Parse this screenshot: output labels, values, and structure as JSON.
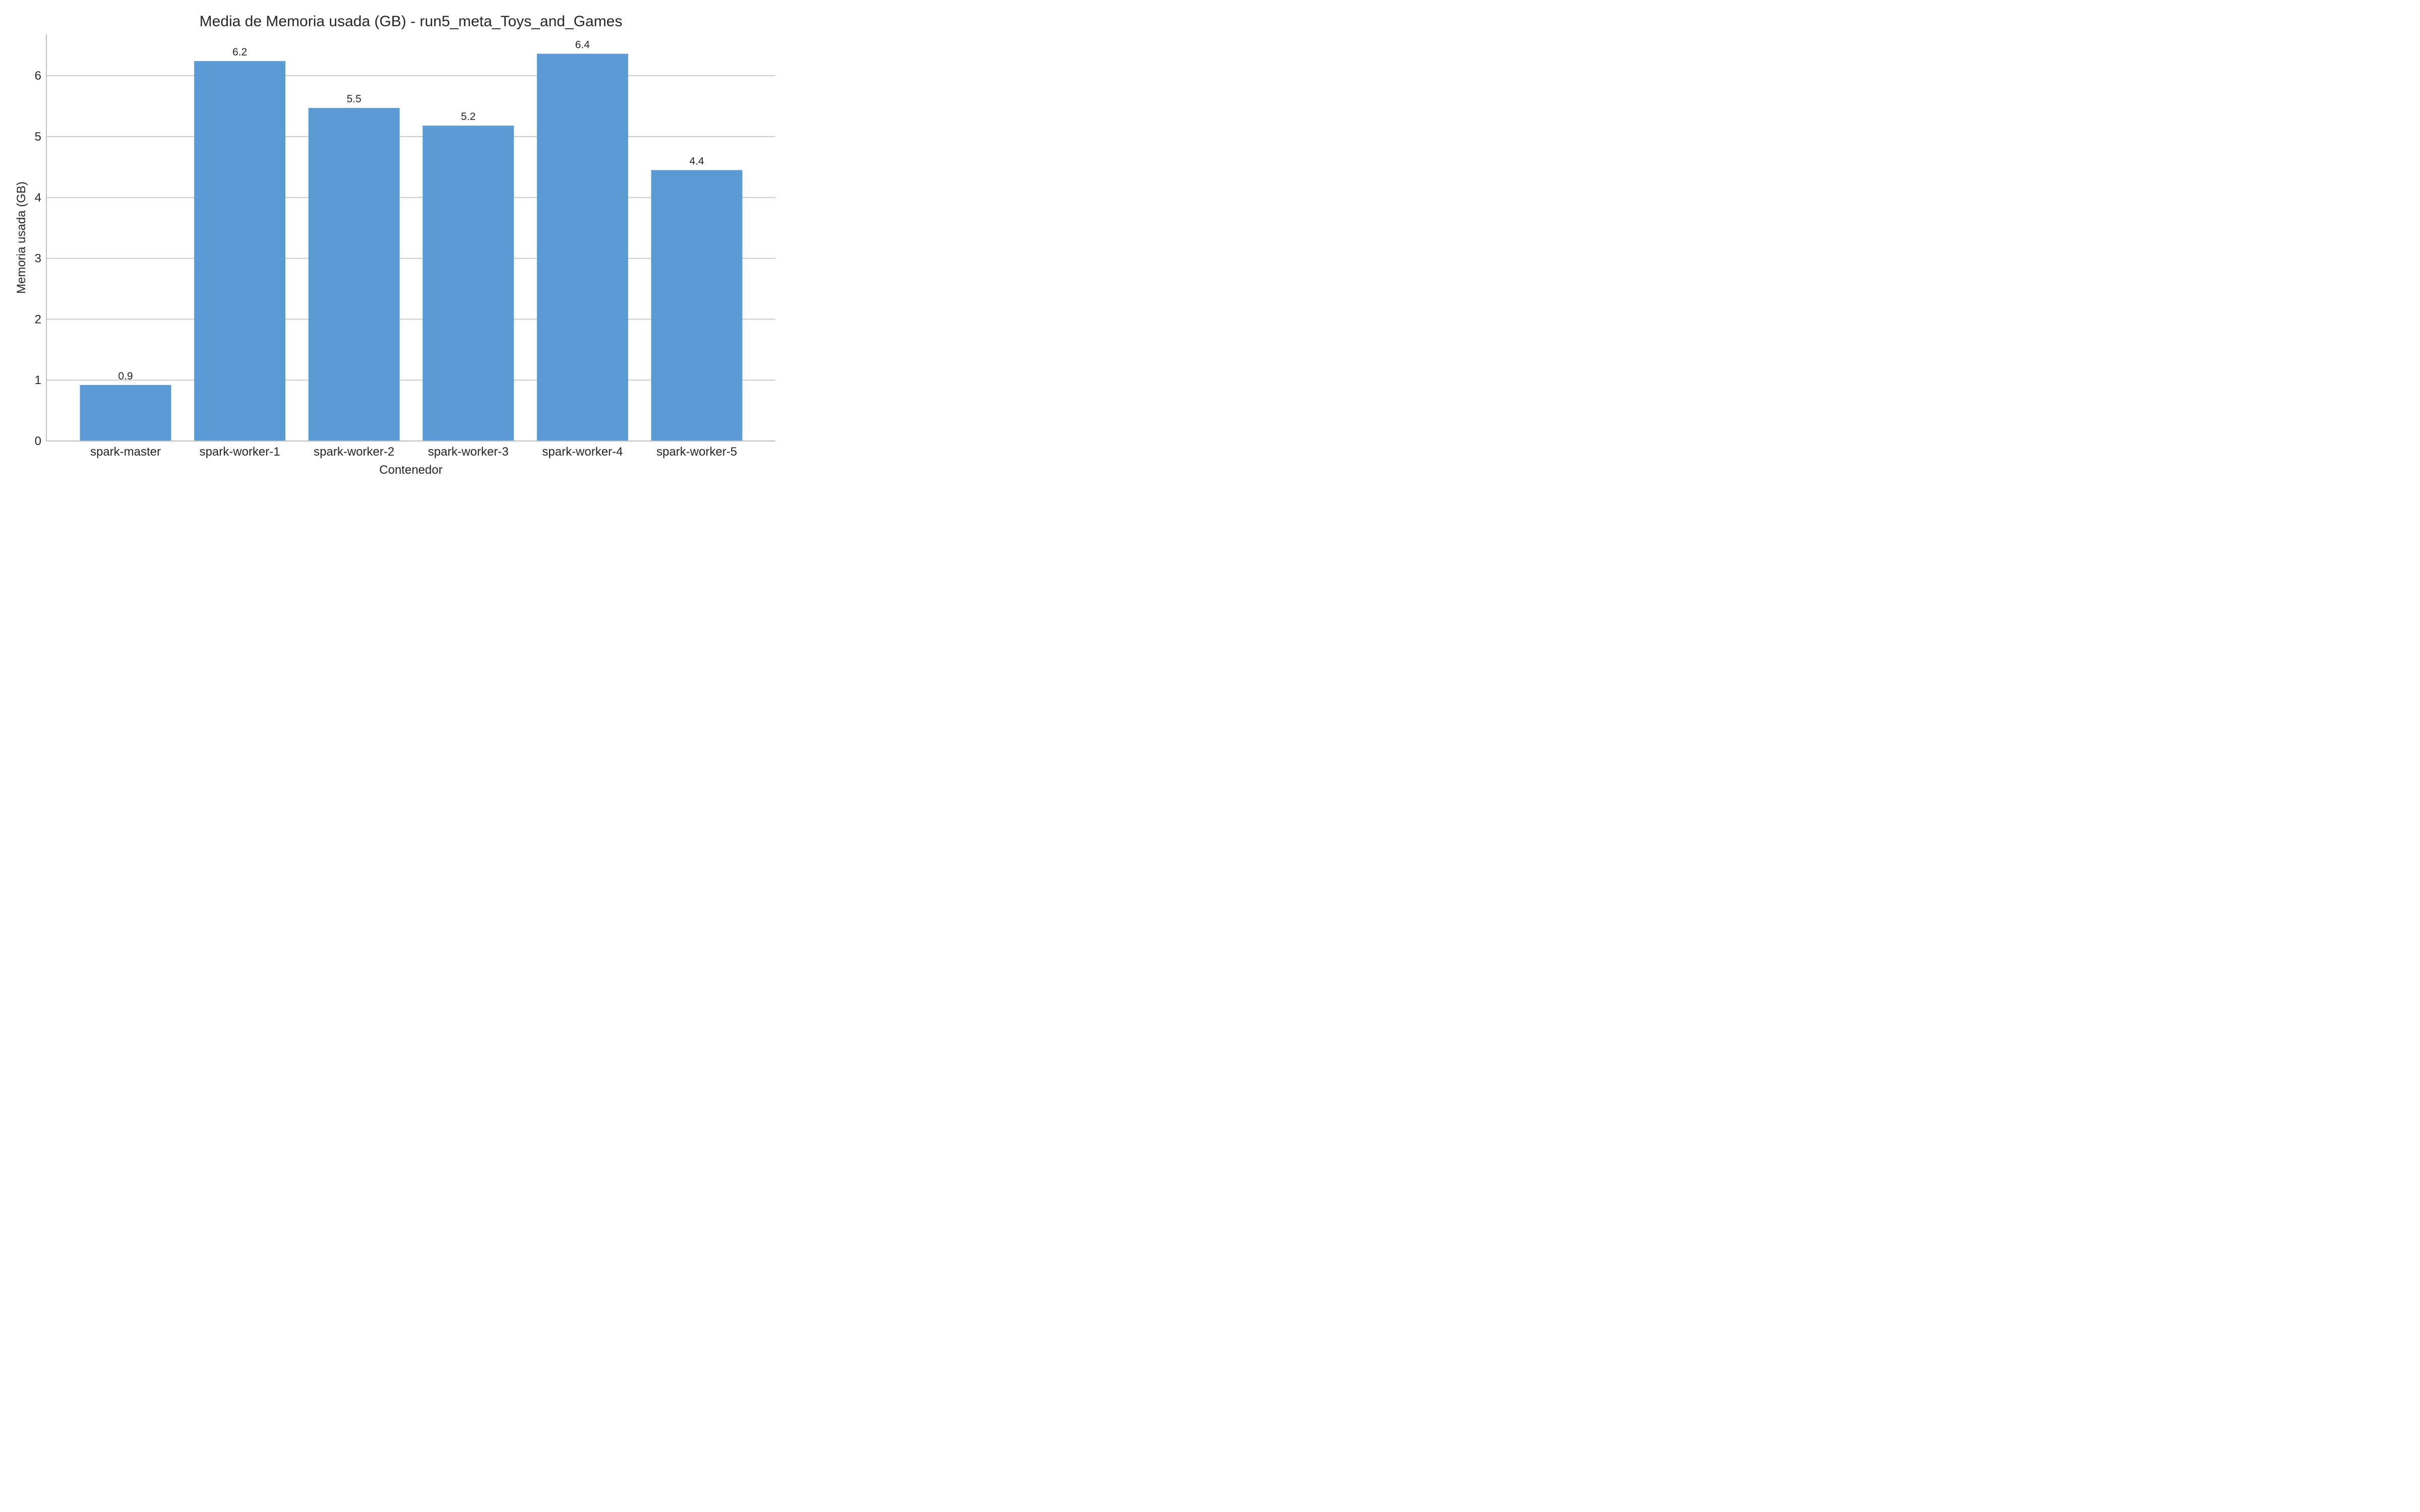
{
  "chart_data": {
    "type": "bar",
    "title": "Media de Memoria usada (GB) - run5_meta_Toys_and_Games",
    "xlabel": "Contenedor",
    "ylabel": "Memoria usada (GB)",
    "categories": [
      "spark-master",
      "spark-worker-1",
      "spark-worker-2",
      "spark-worker-3",
      "spark-worker-4",
      "spark-worker-5"
    ],
    "values": [
      0.92,
      6.24,
      5.47,
      5.18,
      6.36,
      4.45
    ],
    "data_labels": [
      "0.9",
      "6.2",
      "5.5",
      "5.2",
      "6.4",
      "4.4"
    ],
    "ylim": [
      0,
      6.68
    ],
    "yticks": [
      0,
      1,
      2,
      3,
      4,
      5,
      6
    ],
    "ytick_labels": [
      "0",
      "1",
      "2",
      "3",
      "4",
      "5",
      "6"
    ],
    "grid": "horizontal",
    "legend": "none",
    "colors": {
      "bar": "#5b9bd5",
      "grid": "#cccccc",
      "axis": "#bfbfbf",
      "text": "#262626"
    }
  }
}
